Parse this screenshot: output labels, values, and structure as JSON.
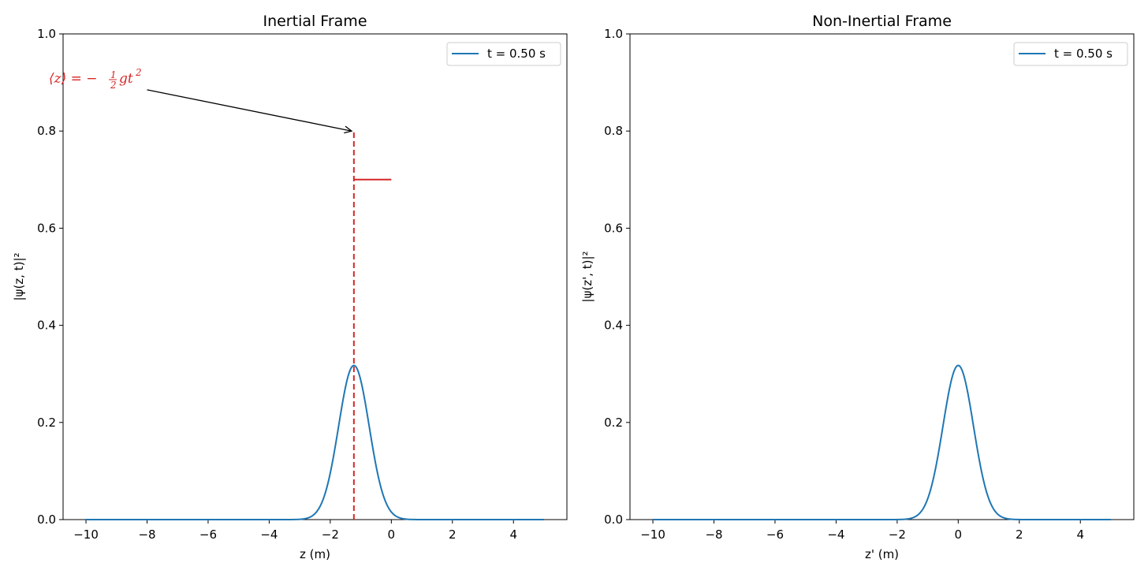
{
  "chart_data": [
    {
      "type": "line",
      "title": "Inertial Frame",
      "xlabel": "z (m)",
      "ylabel": "|ψ(z, t)|²",
      "xlim": [
        -10.75,
        5.75
      ],
      "ylim": [
        0.0,
        1.0
      ],
      "xticks": [
        -10,
        -8,
        -6,
        -4,
        -2,
        0,
        2,
        4
      ],
      "xtick_labels": [
        "−10",
        "−8",
        "−6",
        "−4",
        "−2",
        "0",
        "2",
        "4"
      ],
      "yticks": [
        0.0,
        0.2,
        0.4,
        0.6,
        0.8,
        1.0
      ],
      "ytick_labels": [
        "0.0",
        "0.2",
        "0.4",
        "0.6",
        "0.8",
        "1.0"
      ],
      "grid": false,
      "legend_position": "top-right",
      "series": [
        {
          "name": "t = 0.50 s",
          "color": "#1f77b4",
          "curve": "gaussian",
          "x_range": [
            -10,
            5
          ],
          "center": -1.226,
          "sigma": 0.5,
          "peak": 0.3174
        }
      ],
      "markers": {
        "vline": {
          "x": -1.226,
          "y_range": [
            0.0,
            0.8
          ],
          "color": "#d62728",
          "style": "dashed"
        },
        "hline": {
          "y": 0.7,
          "x_range": [
            -1.226,
            0.0
          ],
          "color": "#d62728",
          "style": "solid"
        }
      },
      "annotation": {
        "text_main": "⟨z⟩ = −",
        "frac_num": "1",
        "frac_den": "2",
        "text_tail": "gt",
        "sup": "2",
        "color": "#d62728",
        "text_at": [
          -10.0,
          0.905
        ],
        "arrow_from": [
          -8.0,
          0.885
        ],
        "arrow_to": [
          -1.3,
          0.8
        ]
      }
    },
    {
      "type": "line",
      "title": "Non-Inertial Frame",
      "xlabel": "z' (m)",
      "ylabel": "|ψ(z', t)|²",
      "xlim": [
        -10.75,
        5.75
      ],
      "ylim": [
        0.0,
        1.0
      ],
      "xticks": [
        -10,
        -8,
        -6,
        -4,
        -2,
        0,
        2,
        4
      ],
      "xtick_labels": [
        "−10",
        "−8",
        "−6",
        "−4",
        "−2",
        "0",
        "2",
        "4"
      ],
      "yticks": [
        0.0,
        0.2,
        0.4,
        0.6,
        0.8,
        1.0
      ],
      "ytick_labels": [
        "0.0",
        "0.2",
        "0.4",
        "0.6",
        "0.8",
        "1.0"
      ],
      "grid": false,
      "legend_position": "top-right",
      "series": [
        {
          "name": "t = 0.50 s",
          "color": "#1f77b4",
          "curve": "gaussian",
          "x_range": [
            -10,
            5
          ],
          "center": 0.0,
          "sigma": 0.5,
          "peak": 0.3174
        }
      ]
    }
  ]
}
